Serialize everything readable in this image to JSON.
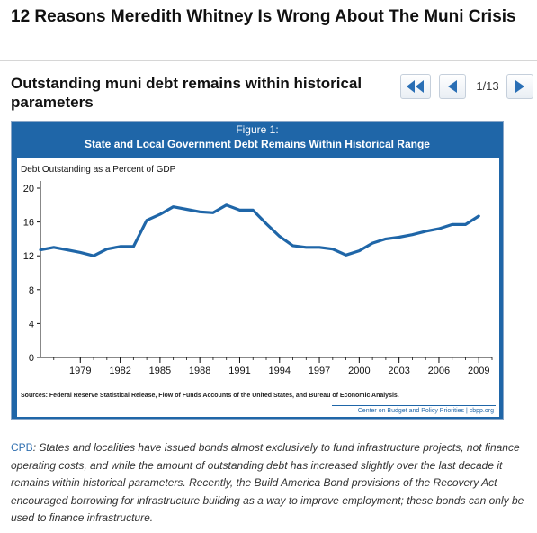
{
  "page": {
    "title": "12 Reasons Meredith Whitney Is Wrong About The Muni Crisis"
  },
  "slide": {
    "title": "Outstanding muni debt remains within historical parameters",
    "counter": "1/13"
  },
  "icons": {
    "first": "double-left-arrow-icon",
    "prev": "left-arrow-icon",
    "next": "right-arrow-icon",
    "arrow_color": "#2a6fb5"
  },
  "figure": {
    "label": "Figure 1:",
    "heading": "State and Local Government Debt Remains Within Historical Range",
    "sources": "Sources: Federal Reserve Statistical Release, Flow of Funds Accounts of the United States, and Bureau of Economic Analysis.",
    "credit": "Center on Budget and Policy Priorities | cbpp.org",
    "frame_color": "#1f66a8"
  },
  "chart_data": {
    "type": "line",
    "ylabel": "Debt Outstanding as a Percent of GDP",
    "ylim": [
      0,
      20
    ],
    "yticks": [
      0,
      4,
      8,
      12,
      16,
      20
    ],
    "xlim": [
      1976,
      2010
    ],
    "xticks": [
      1979,
      1982,
      1985,
      1988,
      1991,
      1994,
      1997,
      2000,
      2003,
      2006,
      2009
    ],
    "grid": false,
    "series": [
      {
        "color": "#1f66a8",
        "x": [
          1976,
          1977,
          1978,
          1979,
          1980,
          1981,
          1982,
          1983,
          1984,
          1985,
          1986,
          1987,
          1988,
          1989,
          1990,
          1991,
          1992,
          1993,
          1994,
          1995,
          1996,
          1997,
          1998,
          1999,
          2000,
          2001,
          2002,
          2003,
          2004,
          2005,
          2006,
          2007,
          2008,
          2009
        ],
        "y": [
          12.7,
          13.0,
          12.7,
          12.4,
          12.0,
          12.8,
          13.1,
          13.1,
          16.2,
          16.9,
          17.8,
          17.5,
          17.2,
          17.1,
          18.0,
          17.4,
          17.4,
          15.8,
          14.3,
          13.2,
          13.0,
          13.0,
          12.8,
          12.1,
          12.6,
          13.5,
          14.0,
          14.2,
          14.5,
          14.9,
          15.2,
          15.7,
          15.7,
          16.7
        ]
      }
    ]
  },
  "caption": {
    "source_link": "CPB",
    "text": ": States and localities have issued bonds almost exclusively to fund infrastructure projects, not finance operating costs, and while the amount of outstanding debt has increased slightly over the last decade it remains within historical parameters.  Recently, the Build America Bond provisions of the Recovery Act encouraged borrowing for infrastructure building as a way to improve employment; these bonds can only be used to finance infrastructure."
  }
}
